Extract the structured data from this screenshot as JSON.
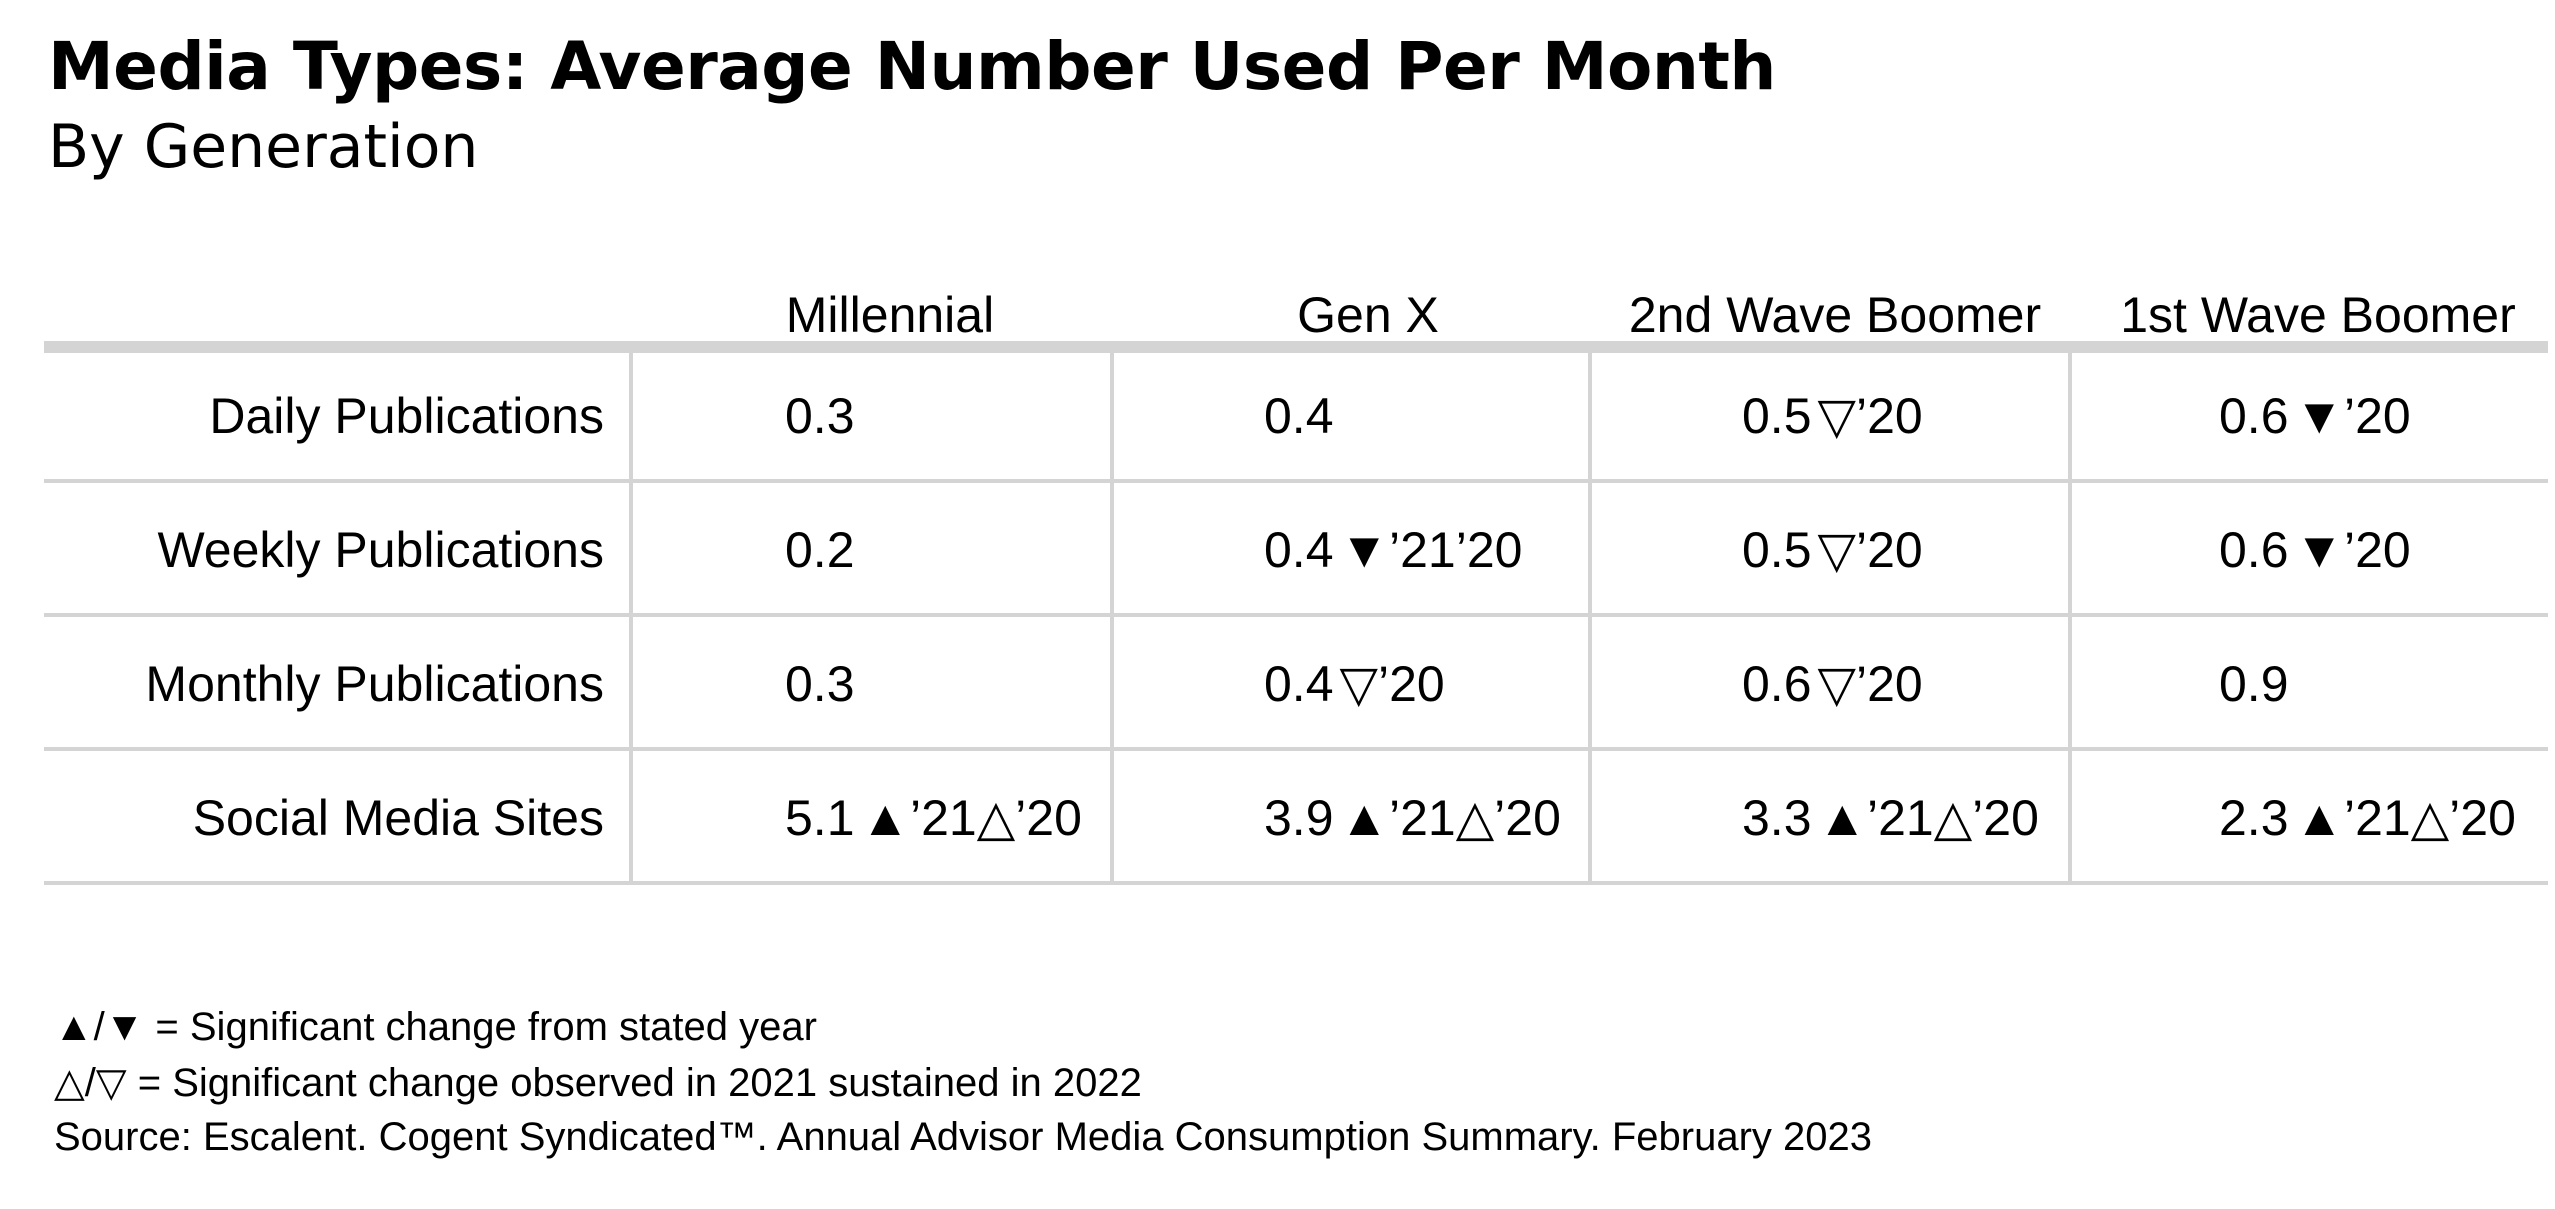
{
  "title": "Media Types: Average Number Used Per Month",
  "subtitle": "By Generation",
  "chart_data": {
    "type": "table",
    "title": "Media Types: Average Number Used Per Month",
    "subtitle": "By Generation",
    "columns": [
      "Millennial",
      "Gen X",
      "2nd Wave Boomer",
      "1st Wave Boomer"
    ],
    "rows": [
      {
        "label": "Daily Publications",
        "cells": [
          {
            "value": "0.3",
            "mark": ""
          },
          {
            "value": "0.4",
            "mark": ""
          },
          {
            "value": "0.5",
            "mark": "▽’20"
          },
          {
            "value": "0.6",
            "mark": "▼’20"
          }
        ]
      },
      {
        "label": "Weekly Publications",
        "cells": [
          {
            "value": "0.2",
            "mark": ""
          },
          {
            "value": "0.4",
            "mark": "▼’21’20"
          },
          {
            "value": "0.5",
            "mark": "▽’20"
          },
          {
            "value": "0.6",
            "mark": "▼’20"
          }
        ]
      },
      {
        "label": "Monthly Publications",
        "cells": [
          {
            "value": "0.3",
            "mark": ""
          },
          {
            "value": "0.4",
            "mark": "▽’20"
          },
          {
            "value": "0.6",
            "mark": "▽’20"
          },
          {
            "value": "0.9",
            "mark": ""
          }
        ]
      },
      {
        "label": "Social Media Sites",
        "cells": [
          {
            "value": "5.1",
            "mark": "▲’21△’20"
          },
          {
            "value": "3.9",
            "mark": "▲’21△’20"
          },
          {
            "value": "3.3",
            "mark": "▲’21△’20"
          },
          {
            "value": "2.3",
            "mark": "▲’21△’20"
          }
        ]
      }
    ]
  },
  "footnotes": {
    "legend_solid": "▲/▼ = Significant change from stated year",
    "legend_hollow": "△/▽ = Significant change observed in 2021 sustained in 2022",
    "source": "Source: Escalent. Cogent Syndicated™. Annual Advisor Media Consumption Summary. February 2023"
  }
}
